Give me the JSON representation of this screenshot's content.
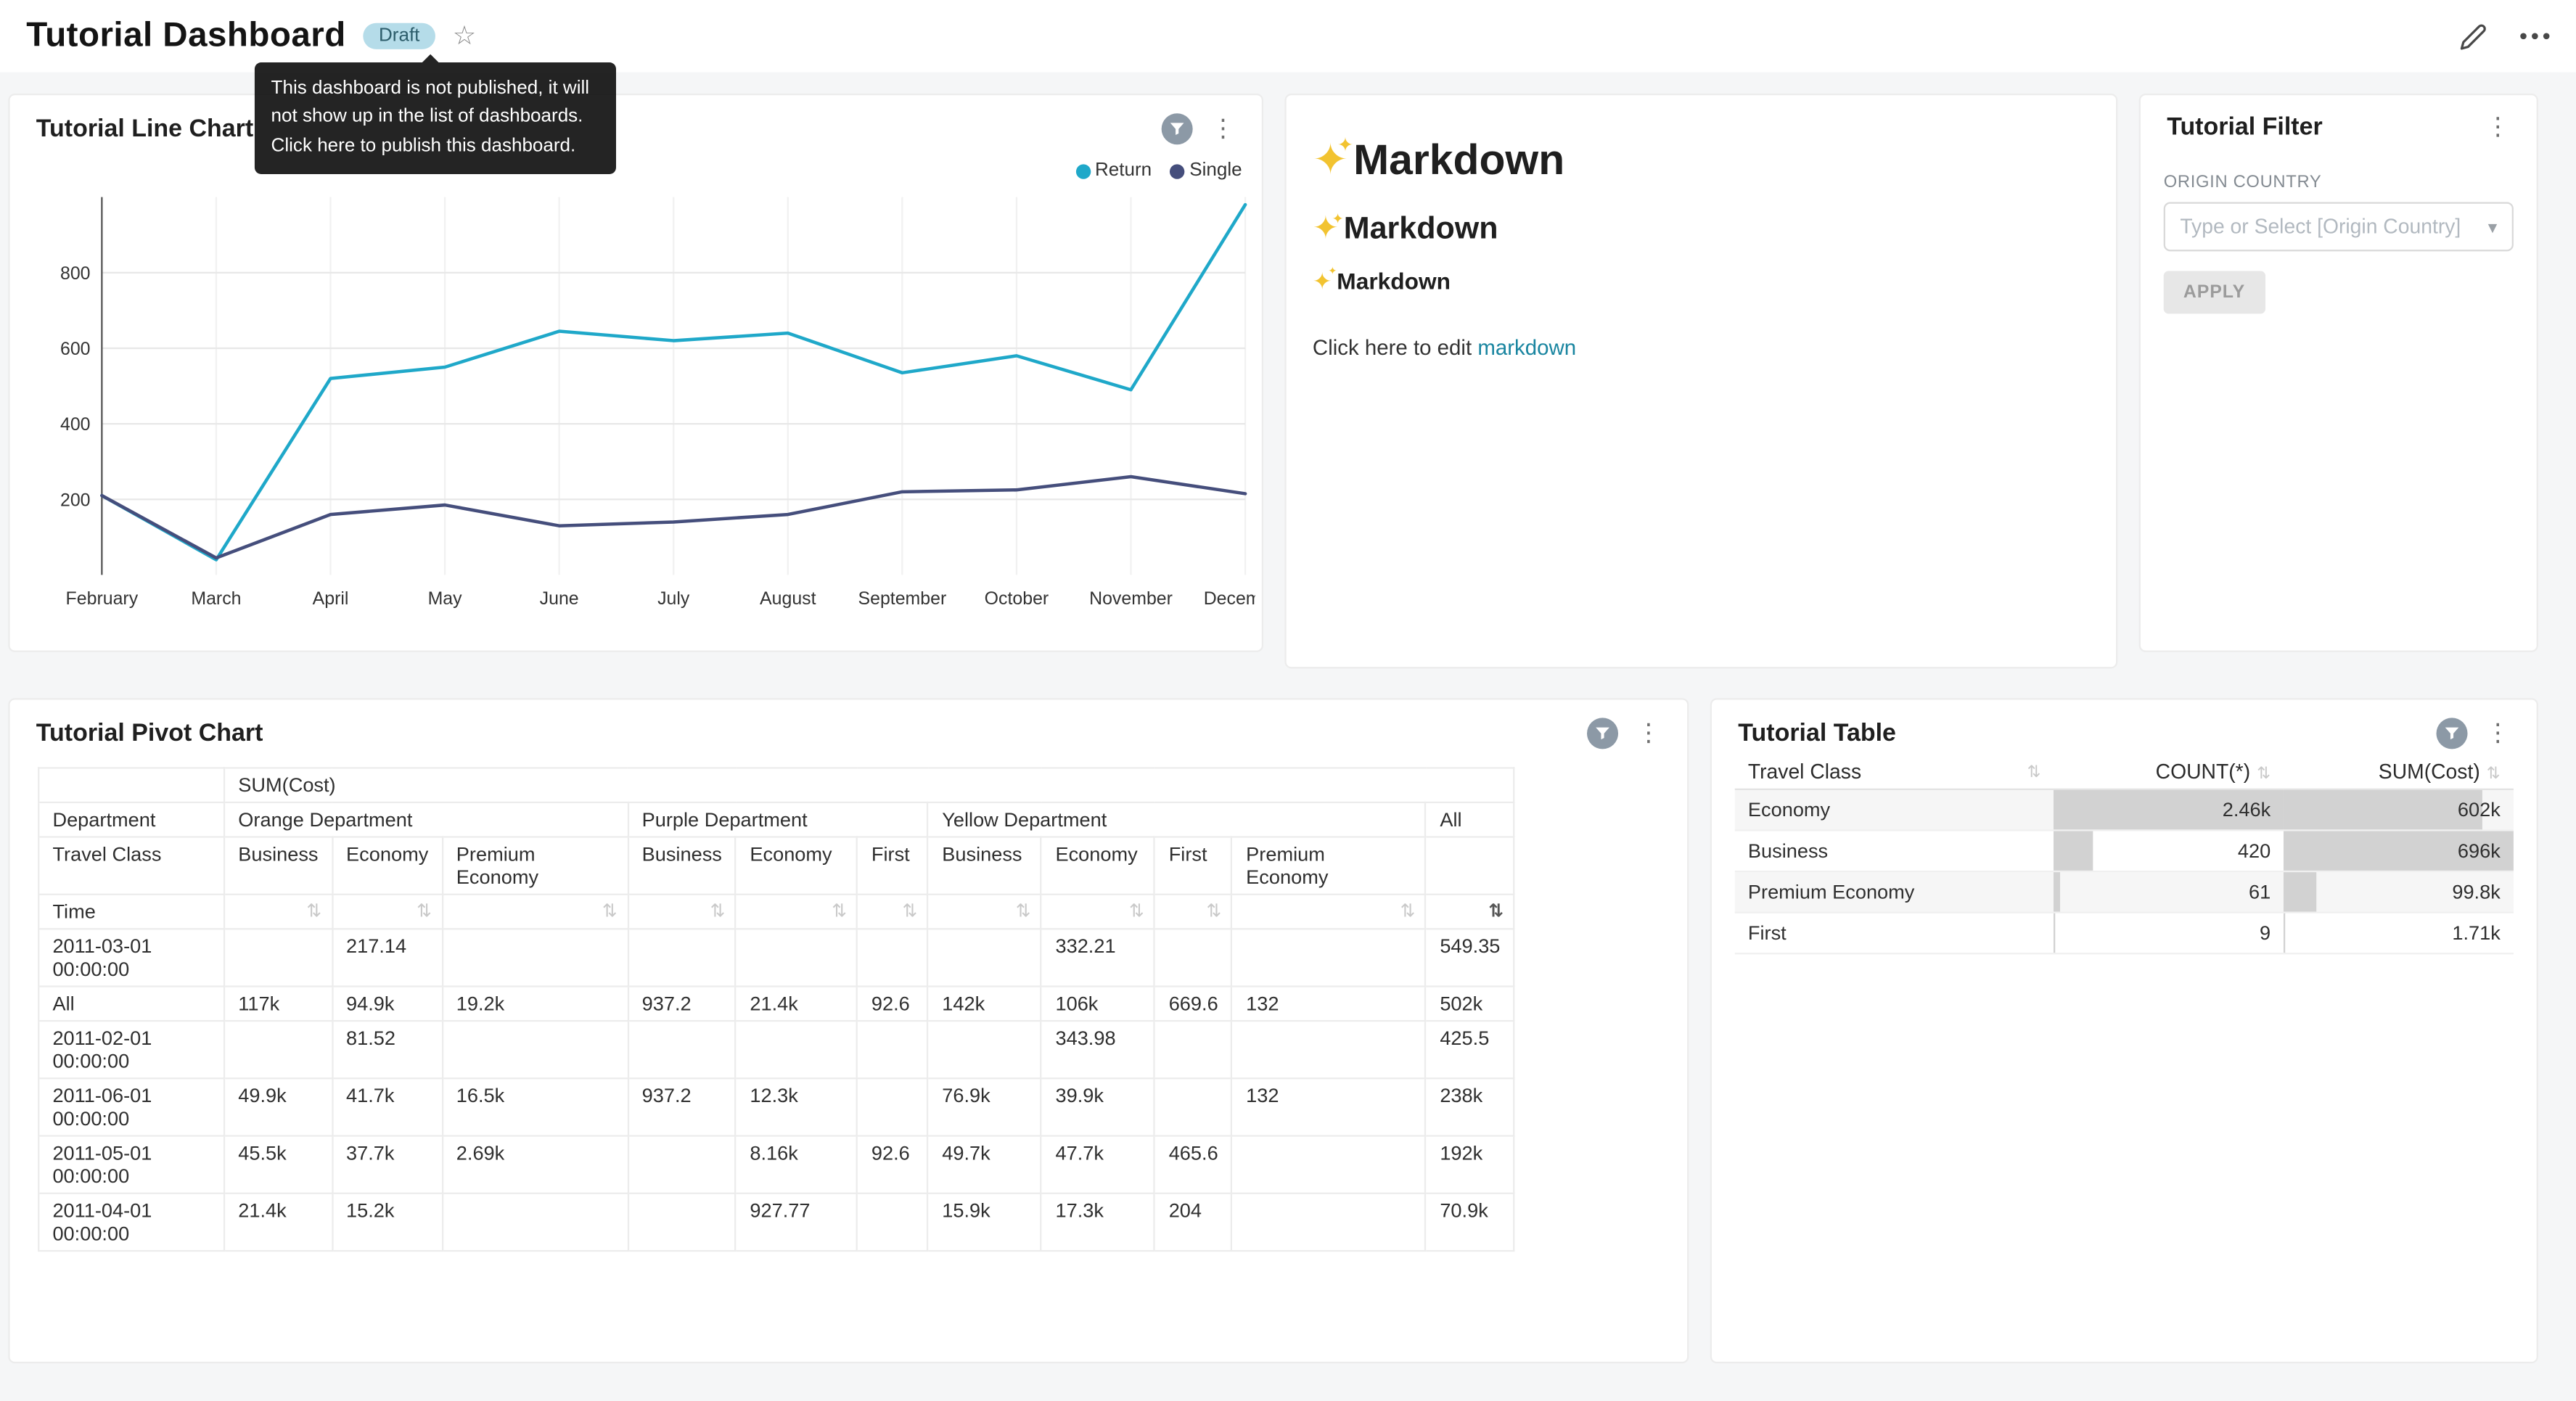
{
  "header": {
    "title": "Tutorial Dashboard",
    "badge": "Draft"
  },
  "tooltip": {
    "lines": [
      "This dashboard is not published, it will",
      "not show up in the list of dashboards.",
      "Click here to publish this dashboard."
    ]
  },
  "icons": {
    "star": "☆",
    "kebab": "⋮",
    "sort": "⇅",
    "caret": "▾",
    "sparkle": "✦"
  },
  "markdown": {
    "heading": "Markdown",
    "subheading": "Markdown",
    "subsubheading": "Markdown",
    "footer_prefix": "Click here to edit ",
    "footer_link": "markdown"
  },
  "filter_card": {
    "title": "Tutorial Filter",
    "field_label": "ORIGIN COUNTRY",
    "placeholder": "Type or Select [Origin Country]",
    "apply_label": "APPLY"
  },
  "chart_data": [
    {
      "type": "line",
      "title": "Tutorial Line Chart",
      "x": [
        "February",
        "March",
        "April",
        "May",
        "June",
        "July",
        "August",
        "September",
        "October",
        "November",
        "December"
      ],
      "series": [
        {
          "name": "Return",
          "color": "#1FA8C9",
          "values": [
            210,
            40,
            520,
            550,
            645,
            620,
            640,
            535,
            580,
            490,
            980
          ]
        },
        {
          "name": "Single",
          "color": "#454E7C",
          "values": [
            210,
            45,
            160,
            185,
            130,
            140,
            160,
            220,
            225,
            260,
            215
          ]
        }
      ],
      "ylim": [
        0,
        1000
      ],
      "yticks": [
        200,
        400,
        600,
        800
      ],
      "grid": true,
      "legend_position": "top-right"
    },
    {
      "type": "table",
      "variant": "pivot",
      "title": "Tutorial Pivot Chart",
      "metric_label": "SUM(Cost)",
      "row1_label": "Department",
      "row2_label": "Travel Class",
      "row3_label": "Time",
      "col_groups": [
        {
          "label": "Orange Department",
          "cols": [
            "Business",
            "Economy",
            "Premium Economy"
          ]
        },
        {
          "label": "Purple Department",
          "cols": [
            "Business",
            "Economy",
            "First"
          ]
        },
        {
          "label": "Yellow Department",
          "cols": [
            "Business",
            "Economy",
            "First",
            "Premium Economy"
          ]
        },
        {
          "label": "All",
          "cols": [
            ""
          ]
        }
      ],
      "rows": [
        {
          "label": "2011-03-01 00:00:00",
          "values": [
            "",
            "217.14",
            "",
            "",
            "",
            "",
            "",
            "332.21",
            "",
            "",
            "549.35"
          ]
        },
        {
          "label": "All",
          "values": [
            "117k",
            "94.9k",
            "19.2k",
            "937.2",
            "21.4k",
            "92.6",
            "142k",
            "106k",
            "669.6",
            "132",
            "502k"
          ]
        },
        {
          "label": "2011-02-01 00:00:00",
          "values": [
            "",
            "81.52",
            "",
            "",
            "",
            "",
            "",
            "343.98",
            "",
            "",
            "425.5"
          ]
        },
        {
          "label": "2011-06-01 00:00:00",
          "values": [
            "49.9k",
            "41.7k",
            "16.5k",
            "937.2",
            "12.3k",
            "",
            "76.9k",
            "39.9k",
            "",
            "132",
            "238k"
          ]
        },
        {
          "label": "2011-05-01 00:00:00",
          "values": [
            "45.5k",
            "37.7k",
            "2.69k",
            "",
            "8.16k",
            "92.6",
            "49.7k",
            "47.7k",
            "465.6",
            "",
            "192k"
          ]
        },
        {
          "label": "2011-04-01 00:00:00",
          "values": [
            "21.4k",
            "15.2k",
            "",
            "",
            "927.77",
            "",
            "15.9k",
            "17.3k",
            "204",
            "",
            "70.9k"
          ]
        }
      ]
    },
    {
      "type": "table",
      "variant": "bar-table",
      "title": "Tutorial Table",
      "columns": [
        {
          "label": "Travel Class",
          "align": "left"
        },
        {
          "label": "COUNT(*)",
          "align": "right"
        },
        {
          "label": "SUM(Cost)",
          "align": "right"
        }
      ],
      "rows": [
        {
          "cells": [
            "Economy",
            "2.46k",
            "602k"
          ],
          "bars": [
            100,
            86.5
          ]
        },
        {
          "cells": [
            "Business",
            "420",
            "696k"
          ],
          "bars": [
            17,
            100
          ]
        },
        {
          "cells": [
            "Premium Economy",
            "61",
            "99.8k"
          ],
          "bars": [
            2.5,
            14.3
          ]
        },
        {
          "cells": [
            "First",
            "9",
            "1.71k"
          ],
          "bars": [
            0.4,
            0.3
          ]
        }
      ]
    }
  ]
}
